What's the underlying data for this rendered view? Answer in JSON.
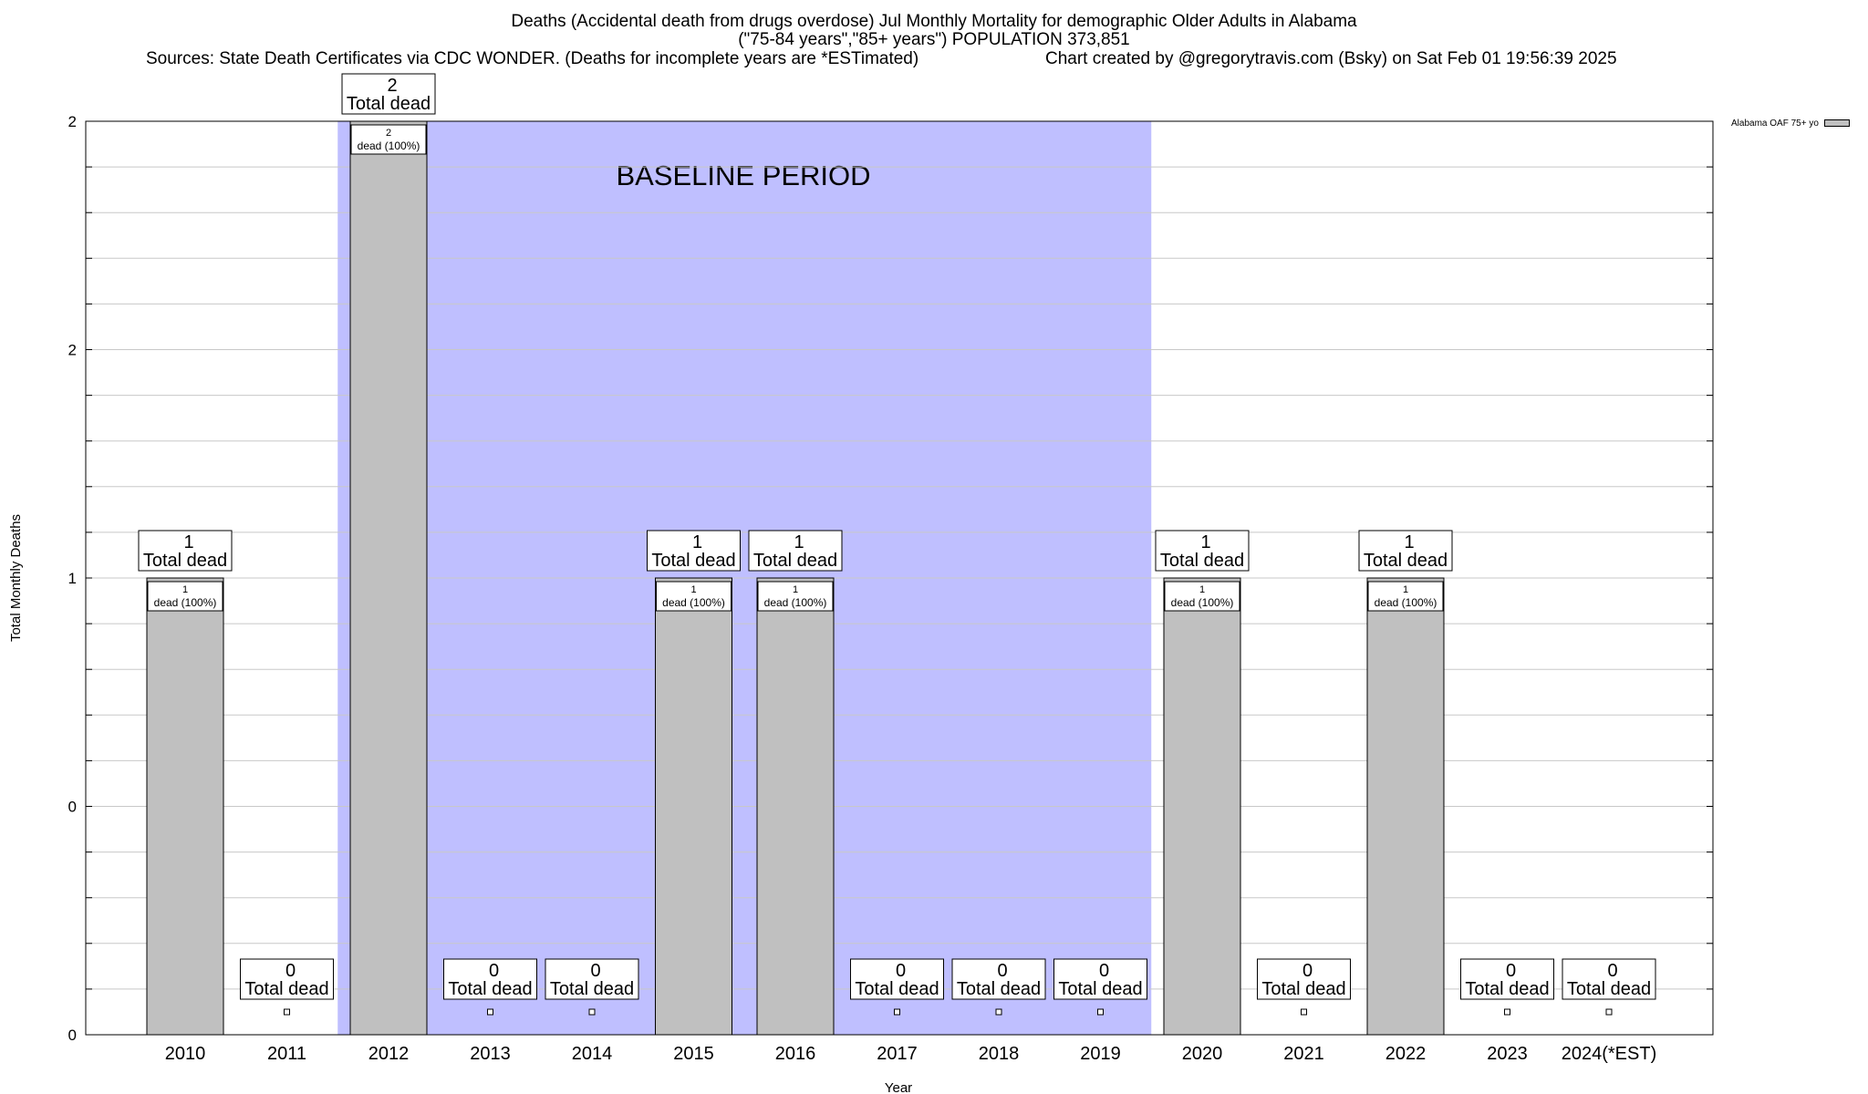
{
  "header": {
    "title_line1": "Deaths (Accidental death from drugs overdose) Jul Monthly Mortality for demographic Older Adults in Alabama",
    "title_line2": "(\"75-84 years\",\"85+ years\") POPULATION 373,851",
    "sources": "Sources: State Death Certificates via CDC WONDER. (Deaths for incomplete years are *ESTimated)",
    "created_by": "Chart created by @gregorytravis.com (Bsky) on Sat Feb 01 19:56:39 2025"
  },
  "chart_data": {
    "type": "bar",
    "xlabel": "Year",
    "ylabel": "Total Monthly Deaths",
    "categories": [
      "2010",
      "2011",
      "2012",
      "2013",
      "2014",
      "2015",
      "2016",
      "2017",
      "2018",
      "2019",
      "2020",
      "2021",
      "2022",
      "2023",
      "2024(*EST)"
    ],
    "series": [
      {
        "name": "Alabama OAF 75+ yo",
        "values": [
          1,
          0,
          2,
          0,
          0,
          1,
          1,
          0,
          0,
          0,
          1,
          0,
          1,
          0,
          0
        ],
        "color": "#c0c0c0"
      }
    ],
    "total_labels": [
      "1\nTotal dead",
      "0\nTotal dead",
      "2\nTotal dead",
      "0\nTotal dead",
      "0\nTotal dead",
      "1\nTotal dead",
      "1\nTotal dead",
      "0\nTotal dead",
      "0\nTotal dead",
      "0\nTotal dead",
      "1\nTotal dead",
      "0\nTotal dead",
      "1\nTotal dead",
      "0\nTotal dead",
      "0\nTotal dead"
    ],
    "inner_labels": [
      "1\ndead (100%)",
      "",
      "2\ndead (100%)",
      "",
      "",
      "1\ndead (100%)",
      "1\ndead (100%)",
      "",
      "",
      "",
      "1\ndead (100%)",
      "",
      "1\ndead (100%)",
      "",
      ""
    ],
    "ylim": [
      0,
      2
    ],
    "ytick_labels": [
      "0",
      "0",
      "1",
      "2",
      "2"
    ],
    "grid": true,
    "legend_position": "top-right",
    "annotation": {
      "text": "BASELINE PERIOD",
      "x_start": "2012",
      "x_end": "2019",
      "color": "#bfbfff"
    }
  }
}
